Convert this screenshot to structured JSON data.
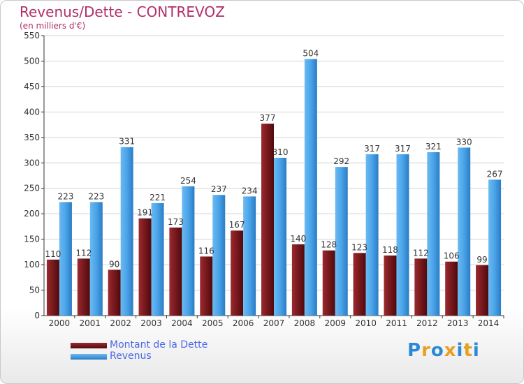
{
  "chart_data": {
    "type": "bar",
    "title": "Revenus/Dette - CONTREVOZ",
    "subtitle": "(en milliers d'€)",
    "categories": [
      "2000",
      "2001",
      "2002",
      "2003",
      "2004",
      "2005",
      "2006",
      "2007",
      "2008",
      "2009",
      "2010",
      "2011",
      "2012",
      "2013",
      "2014"
    ],
    "series": [
      {
        "name": "Montant de la Dette",
        "color": "#7a1a1e",
        "values": [
          110,
          112,
          90,
          191,
          173,
          116,
          167,
          377,
          140,
          128,
          123,
          118,
          112,
          106,
          99
        ]
      },
      {
        "name": "Revenus",
        "color": "#4aa3e8",
        "values": [
          223,
          223,
          331,
          221,
          254,
          237,
          234,
          310,
          504,
          292,
          317,
          317,
          321,
          330,
          267
        ]
      }
    ],
    "yticks": [
      0,
      50,
      100,
      150,
      200,
      250,
      300,
      350,
      400,
      450,
      500,
      550
    ],
    "ylim": [
      0,
      550
    ],
    "grid": true,
    "legend_position": "bottom-left"
  },
  "logo": {
    "letters": [
      {
        "char": "P",
        "color": "#2a8ad8"
      },
      {
        "char": "r",
        "color": "#e8a020"
      },
      {
        "char": "o",
        "color": "#2a8ad8"
      },
      {
        "char": "x",
        "color": "#e8a020"
      },
      {
        "char": "i",
        "color": "#2a8ad8"
      },
      {
        "char": "t",
        "color": "#e8a020"
      },
      {
        "char": "i",
        "color": "#2a8ad8"
      }
    ]
  }
}
